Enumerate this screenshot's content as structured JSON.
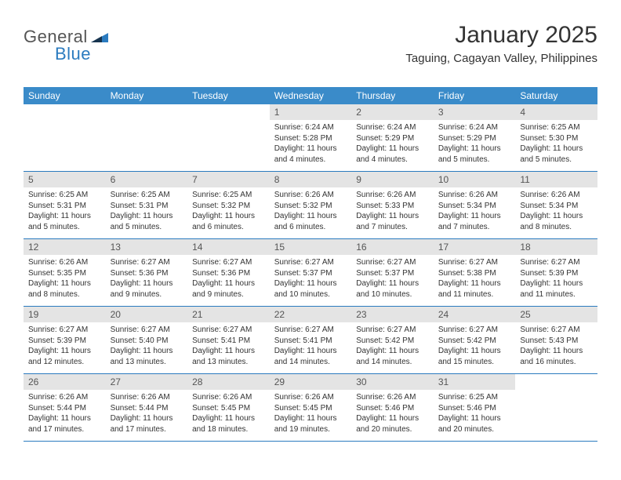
{
  "brand": {
    "general": "General",
    "blue": "Blue"
  },
  "title": {
    "month": "January 2025",
    "location": "Taguing, Cagayan Valley, Philippines"
  },
  "colors": {
    "header_bg": "#3a8bc9",
    "header_text": "#ffffff",
    "daynum_bg": "#e4e4e4",
    "rule": "#2b7bbf",
    "brand_blue": "#2b7bbf",
    "brand_gray": "#555555",
    "text": "#333333",
    "page_bg": "#ffffff"
  },
  "fonts": {
    "title_pt": 30,
    "location_pt": 15,
    "dayhead_pt": 12,
    "body_pt": 10
  },
  "week_headers": [
    "Sunday",
    "Monday",
    "Tuesday",
    "Wednesday",
    "Thursday",
    "Friday",
    "Saturday"
  ],
  "grid": [
    [
      null,
      null,
      null,
      {
        "n": "1",
        "sr": "Sunrise: 6:24 AM",
        "ss": "Sunset: 5:28 PM",
        "dl": "Daylight: 11 hours and 4 minutes."
      },
      {
        "n": "2",
        "sr": "Sunrise: 6:24 AM",
        "ss": "Sunset: 5:29 PM",
        "dl": "Daylight: 11 hours and 4 minutes."
      },
      {
        "n": "3",
        "sr": "Sunrise: 6:24 AM",
        "ss": "Sunset: 5:29 PM",
        "dl": "Daylight: 11 hours and 5 minutes."
      },
      {
        "n": "4",
        "sr": "Sunrise: 6:25 AM",
        "ss": "Sunset: 5:30 PM",
        "dl": "Daylight: 11 hours and 5 minutes."
      }
    ],
    [
      {
        "n": "5",
        "sr": "Sunrise: 6:25 AM",
        "ss": "Sunset: 5:31 PM",
        "dl": "Daylight: 11 hours and 5 minutes."
      },
      {
        "n": "6",
        "sr": "Sunrise: 6:25 AM",
        "ss": "Sunset: 5:31 PM",
        "dl": "Daylight: 11 hours and 5 minutes."
      },
      {
        "n": "7",
        "sr": "Sunrise: 6:25 AM",
        "ss": "Sunset: 5:32 PM",
        "dl": "Daylight: 11 hours and 6 minutes."
      },
      {
        "n": "8",
        "sr": "Sunrise: 6:26 AM",
        "ss": "Sunset: 5:32 PM",
        "dl": "Daylight: 11 hours and 6 minutes."
      },
      {
        "n": "9",
        "sr": "Sunrise: 6:26 AM",
        "ss": "Sunset: 5:33 PM",
        "dl": "Daylight: 11 hours and 7 minutes."
      },
      {
        "n": "10",
        "sr": "Sunrise: 6:26 AM",
        "ss": "Sunset: 5:34 PM",
        "dl": "Daylight: 11 hours and 7 minutes."
      },
      {
        "n": "11",
        "sr": "Sunrise: 6:26 AM",
        "ss": "Sunset: 5:34 PM",
        "dl": "Daylight: 11 hours and 8 minutes."
      }
    ],
    [
      {
        "n": "12",
        "sr": "Sunrise: 6:26 AM",
        "ss": "Sunset: 5:35 PM",
        "dl": "Daylight: 11 hours and 8 minutes."
      },
      {
        "n": "13",
        "sr": "Sunrise: 6:27 AM",
        "ss": "Sunset: 5:36 PM",
        "dl": "Daylight: 11 hours and 9 minutes."
      },
      {
        "n": "14",
        "sr": "Sunrise: 6:27 AM",
        "ss": "Sunset: 5:36 PM",
        "dl": "Daylight: 11 hours and 9 minutes."
      },
      {
        "n": "15",
        "sr": "Sunrise: 6:27 AM",
        "ss": "Sunset: 5:37 PM",
        "dl": "Daylight: 11 hours and 10 minutes."
      },
      {
        "n": "16",
        "sr": "Sunrise: 6:27 AM",
        "ss": "Sunset: 5:37 PM",
        "dl": "Daylight: 11 hours and 10 minutes."
      },
      {
        "n": "17",
        "sr": "Sunrise: 6:27 AM",
        "ss": "Sunset: 5:38 PM",
        "dl": "Daylight: 11 hours and 11 minutes."
      },
      {
        "n": "18",
        "sr": "Sunrise: 6:27 AM",
        "ss": "Sunset: 5:39 PM",
        "dl": "Daylight: 11 hours and 11 minutes."
      }
    ],
    [
      {
        "n": "19",
        "sr": "Sunrise: 6:27 AM",
        "ss": "Sunset: 5:39 PM",
        "dl": "Daylight: 11 hours and 12 minutes."
      },
      {
        "n": "20",
        "sr": "Sunrise: 6:27 AM",
        "ss": "Sunset: 5:40 PM",
        "dl": "Daylight: 11 hours and 13 minutes."
      },
      {
        "n": "21",
        "sr": "Sunrise: 6:27 AM",
        "ss": "Sunset: 5:41 PM",
        "dl": "Daylight: 11 hours and 13 minutes."
      },
      {
        "n": "22",
        "sr": "Sunrise: 6:27 AM",
        "ss": "Sunset: 5:41 PM",
        "dl": "Daylight: 11 hours and 14 minutes."
      },
      {
        "n": "23",
        "sr": "Sunrise: 6:27 AM",
        "ss": "Sunset: 5:42 PM",
        "dl": "Daylight: 11 hours and 14 minutes."
      },
      {
        "n": "24",
        "sr": "Sunrise: 6:27 AM",
        "ss": "Sunset: 5:42 PM",
        "dl": "Daylight: 11 hours and 15 minutes."
      },
      {
        "n": "25",
        "sr": "Sunrise: 6:27 AM",
        "ss": "Sunset: 5:43 PM",
        "dl": "Daylight: 11 hours and 16 minutes."
      }
    ],
    [
      {
        "n": "26",
        "sr": "Sunrise: 6:26 AM",
        "ss": "Sunset: 5:44 PM",
        "dl": "Daylight: 11 hours and 17 minutes."
      },
      {
        "n": "27",
        "sr": "Sunrise: 6:26 AM",
        "ss": "Sunset: 5:44 PM",
        "dl": "Daylight: 11 hours and 17 minutes."
      },
      {
        "n": "28",
        "sr": "Sunrise: 6:26 AM",
        "ss": "Sunset: 5:45 PM",
        "dl": "Daylight: 11 hours and 18 minutes."
      },
      {
        "n": "29",
        "sr": "Sunrise: 6:26 AM",
        "ss": "Sunset: 5:45 PM",
        "dl": "Daylight: 11 hours and 19 minutes."
      },
      {
        "n": "30",
        "sr": "Sunrise: 6:26 AM",
        "ss": "Sunset: 5:46 PM",
        "dl": "Daylight: 11 hours and 20 minutes."
      },
      {
        "n": "31",
        "sr": "Sunrise: 6:25 AM",
        "ss": "Sunset: 5:46 PM",
        "dl": "Daylight: 11 hours and 20 minutes."
      },
      null
    ]
  ]
}
